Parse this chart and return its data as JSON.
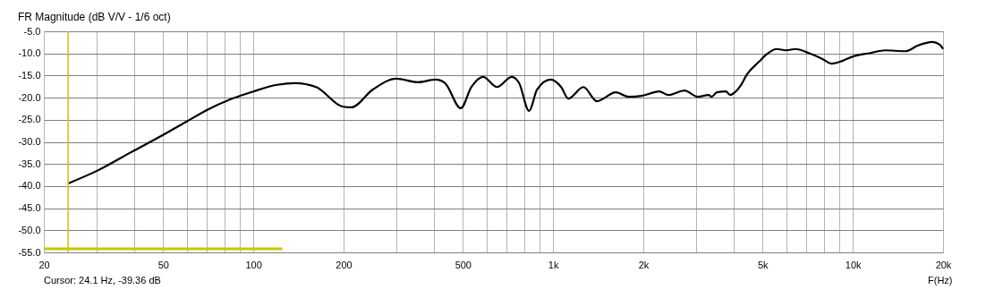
{
  "chart_data": {
    "type": "line",
    "title": "FR Magnitude (dB V/V - 1/6 oct)",
    "xlabel": "F(Hz)",
    "log": "x",
    "grid": true,
    "marker": "none",
    "line_style": "solid",
    "annotations": [
      "Cursor: 24.1 Hz, -39.36 dB"
    ],
    "xlim": [
      20,
      20000
    ],
    "xticks": [
      20,
      {
        "value": 30,
        "label": null
      },
      {
        "value": 40,
        "label": null
      },
      50,
      {
        "value": 60,
        "label": null
      },
      {
        "value": 70,
        "label": null
      },
      {
        "value": 80,
        "label": null
      },
      {
        "value": 90,
        "label": null
      },
      100,
      200,
      {
        "value": 300,
        "label": null
      },
      {
        "value": 400,
        "label": null
      },
      500,
      {
        "value": 600,
        "label": null
      },
      {
        "value": 700,
        "label": null
      },
      {
        "value": 800,
        "label": null
      },
      {
        "value": 900,
        "label": null
      },
      {
        "value": 1000,
        "label": "1k"
      },
      {
        "value": 2000,
        "label": "2k"
      },
      {
        "value": 3000,
        "label": null
      },
      {
        "value": 4000,
        "label": null
      },
      {
        "value": 5000,
        "label": "5k"
      },
      {
        "value": 6000,
        "label": null
      },
      {
        "value": 7000,
        "label": null
      },
      {
        "value": 8000,
        "label": null
      },
      {
        "value": 9000,
        "label": null
      },
      {
        "value": 10000,
        "label": "10k"
      },
      {
        "value": 20000,
        "label": "20k"
      }
    ],
    "ylim": [
      -55,
      -5
    ],
    "yticks": [
      {
        "value": -5,
        "label": "-5.0"
      },
      {
        "value": -10,
        "label": "-10.0"
      },
      {
        "value": -15,
        "label": "-15.0"
      },
      {
        "value": -20,
        "label": "-20.0"
      },
      {
        "value": -25,
        "label": "-25.0"
      },
      {
        "value": -30,
        "label": "-30.0"
      },
      {
        "value": -35,
        "label": "-35.0"
      },
      {
        "value": -40,
        "label": "-40.0"
      },
      {
        "value": -45,
        "label": "-45.0"
      },
      {
        "value": -50,
        "label": "-50.0"
      },
      {
        "value": -55,
        "label": "-55.0"
      }
    ],
    "ref_lines": [
      {
        "axis": "x",
        "value": 24.1,
        "color": "#c8c800"
      }
    ],
    "series": [
      {
        "color": "#000000",
        "x": [
          24.1,
          30.4,
          39.2,
          49.2,
          59.2,
          70.9,
          85.2,
          100,
          120,
          138,
          162,
          198,
          212,
          250,
          300,
          354,
          406,
          436,
          492,
          534,
          584,
          650,
          728,
          770,
          832,
          884,
          980,
          1064,
          1124,
          1262,
          1400,
          1618,
          1792,
          1974,
          2260,
          2420,
          2740,
          3040,
          3300,
          3380,
          3520,
          3770,
          3900,
          4040,
          4220,
          4440,
          4860,
          5180,
          5570,
          5990,
          6440,
          7120,
          7850,
          8500,
          9220,
          10000,
          11440,
          12800,
          15000,
          16500,
          18400,
          19500,
          20000
        ],
        "values": [
          -39.4,
          -36.4,
          -32.3,
          -28.7,
          -25.6,
          -22.6,
          -20.2,
          -18.6,
          -17.1,
          -16.7,
          -17.6,
          -22.0,
          -22.2,
          -18.2,
          -15.7,
          -16.5,
          -15.9,
          -16.7,
          -22.4,
          -17.6,
          -15.3,
          -17.6,
          -15.3,
          -16.7,
          -23.0,
          -18.2,
          -15.9,
          -17.6,
          -20.2,
          -17.6,
          -20.8,
          -18.8,
          -19.8,
          -19.6,
          -18.6,
          -19.4,
          -18.4,
          -19.8,
          -19.4,
          -19.8,
          -18.8,
          -18.6,
          -19.4,
          -18.8,
          -17.3,
          -14.7,
          -11.9,
          -10.1,
          -9.0,
          -9.3,
          -9.0,
          -9.9,
          -11.1,
          -12.3,
          -11.7,
          -10.7,
          -9.9,
          -9.3,
          -9.5,
          -8.2,
          -7.4,
          -8.0,
          -9.0
        ]
      },
      {
        "color": "#c8c800",
        "x": [
          20,
          125
        ],
        "values": [
          -54.2,
          -54.2
        ]
      }
    ]
  }
}
